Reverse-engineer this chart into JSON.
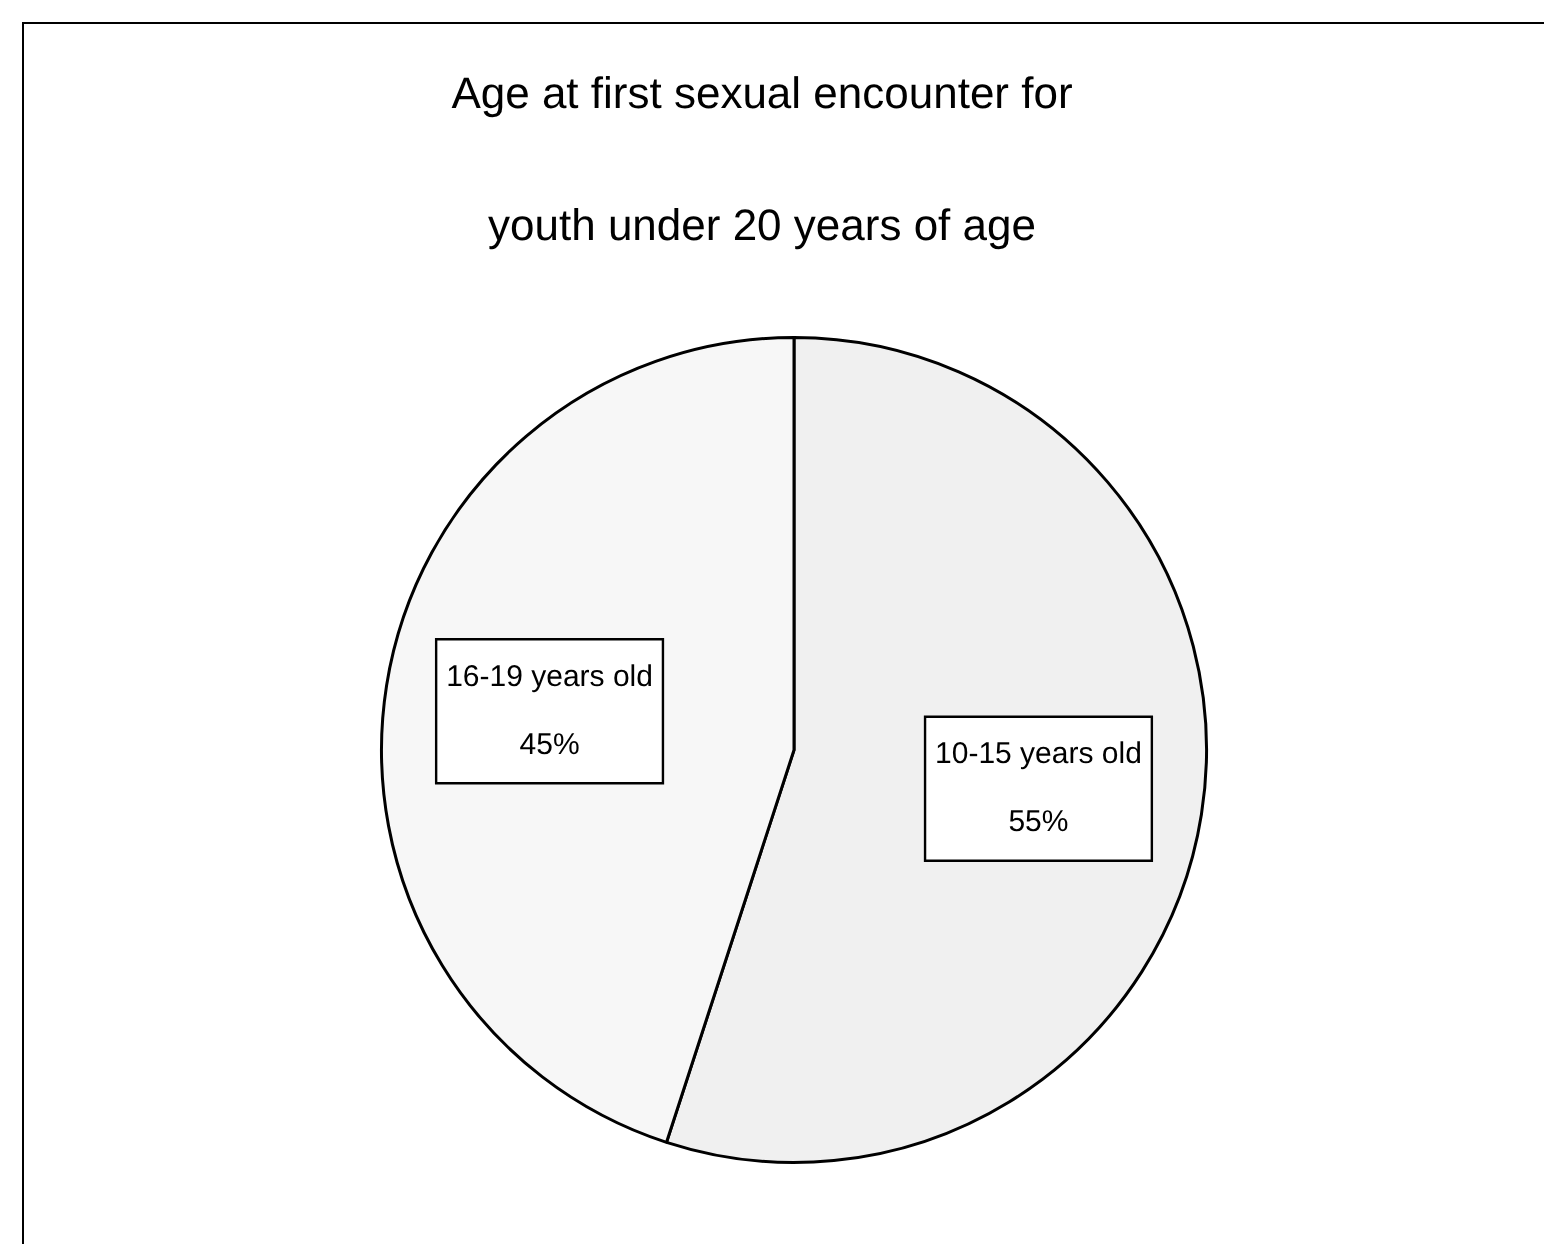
{
  "chart_data": {
    "type": "pie",
    "title": "Age at first sexual encounter for youth under 20 years of age",
    "categories": [
      "10-15 years old",
      "16-19 years old"
    ],
    "values": [
      55,
      45
    ],
    "colors": [
      "#f0f0f0",
      "#f7f7f7"
    ],
    "value_labels": [
      "55%",
      "45%"
    ]
  }
}
